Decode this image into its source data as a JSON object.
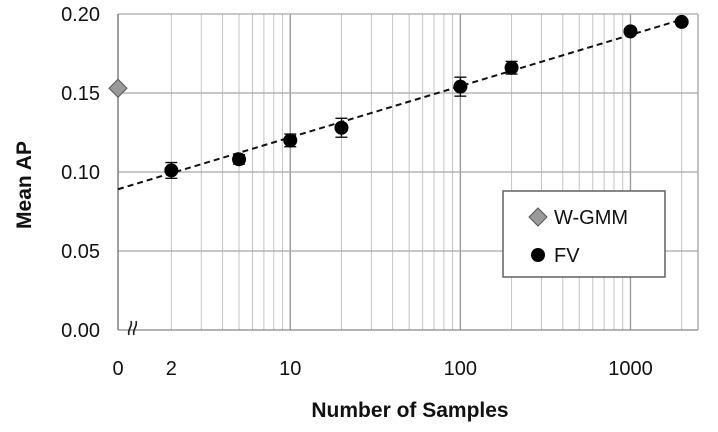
{
  "chart_data": {
    "type": "scatter",
    "title": "",
    "xlabel": "Number of Samples",
    "ylabel": "Mean AP",
    "x_scale": "log",
    "x_break_after_zero": true,
    "xlim": [
      1.4,
      2300
    ],
    "ylim": [
      0.0,
      0.2
    ],
    "grid": true,
    "legend_position": "right",
    "y_ticks": [
      "0.00",
      "0.05",
      "0.10",
      "0.15",
      "0.20"
    ],
    "y_tick_values": [
      0.0,
      0.05,
      0.1,
      0.15,
      0.2
    ],
    "x_ticks": [
      "0",
      "2",
      "10",
      "100",
      "1000"
    ],
    "x_tick_values": [
      0,
      2,
      10,
      100,
      1000
    ],
    "series": [
      {
        "name": "W-GMM",
        "marker": "diamond",
        "color": "#9a9a9a",
        "points": [
          {
            "x": 0,
            "y": 0.153
          }
        ]
      },
      {
        "name": "FV",
        "marker": "circle",
        "color": "#000000",
        "points": [
          {
            "x": 2,
            "y": 0.101,
            "err": 0.005
          },
          {
            "x": 5,
            "y": 0.108,
            "err": 0.003
          },
          {
            "x": 10,
            "y": 0.12,
            "err": 0.004
          },
          {
            "x": 20,
            "y": 0.128,
            "err": 0.006
          },
          {
            "x": 100,
            "y": 0.154,
            "err": 0.006
          },
          {
            "x": 200,
            "y": 0.166,
            "err": 0.004
          },
          {
            "x": 1000,
            "y": 0.189,
            "err": 0.002
          },
          {
            "x": 2000,
            "y": 0.195,
            "err": 0.0
          }
        ]
      }
    ],
    "trendline": {
      "series": "FV",
      "style": "dashed",
      "type": "logarithmic",
      "y_at_x1": 0.0895,
      "y_at_x2000": 0.1965
    }
  }
}
